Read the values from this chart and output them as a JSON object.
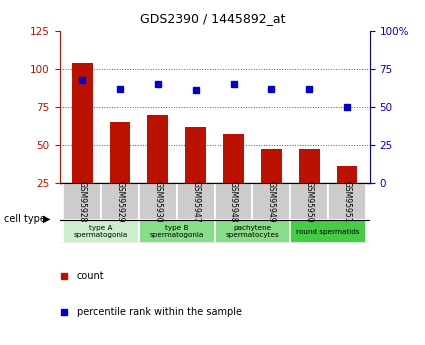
{
  "title": "GDS2390 / 1445892_at",
  "samples": [
    "GSM95928",
    "GSM95929",
    "GSM95930",
    "GSM95947",
    "GSM95948",
    "GSM95949",
    "GSM95950",
    "GSM95951"
  ],
  "counts": [
    104,
    65,
    70,
    62,
    57,
    47,
    47,
    36
  ],
  "percentile_ranks": [
    68,
    62,
    65,
    61,
    65,
    62,
    62,
    50
  ],
  "ylim_left": [
    25,
    125
  ],
  "ylim_right": [
    0,
    100
  ],
  "left_ticks": [
    25,
    50,
    75,
    100,
    125
  ],
  "right_ticks": [
    0,
    25,
    50,
    75,
    100
  ],
  "right_tick_labels": [
    "0",
    "25",
    "50",
    "75",
    "100%"
  ],
  "bar_color": "#bb1100",
  "dot_color": "#0000cc",
  "cell_groups": [
    {
      "label": "type A\nspermatogonia",
      "start": 0,
      "end": 2,
      "color": "#cceecc"
    },
    {
      "label": "type B\nspermatogonia",
      "start": 2,
      "end": 4,
      "color": "#88dd88"
    },
    {
      "label": "pachytene\nspermatocytes",
      "start": 4,
      "end": 6,
      "color": "#88dd88"
    },
    {
      "label": "round spermatids",
      "start": 6,
      "end": 8,
      "color": "#44cc44"
    }
  ],
  "grid_color": "#555555",
  "background_color": "#ffffff",
  "sample_bg_color": "#cccccc",
  "border_color": "#000000"
}
